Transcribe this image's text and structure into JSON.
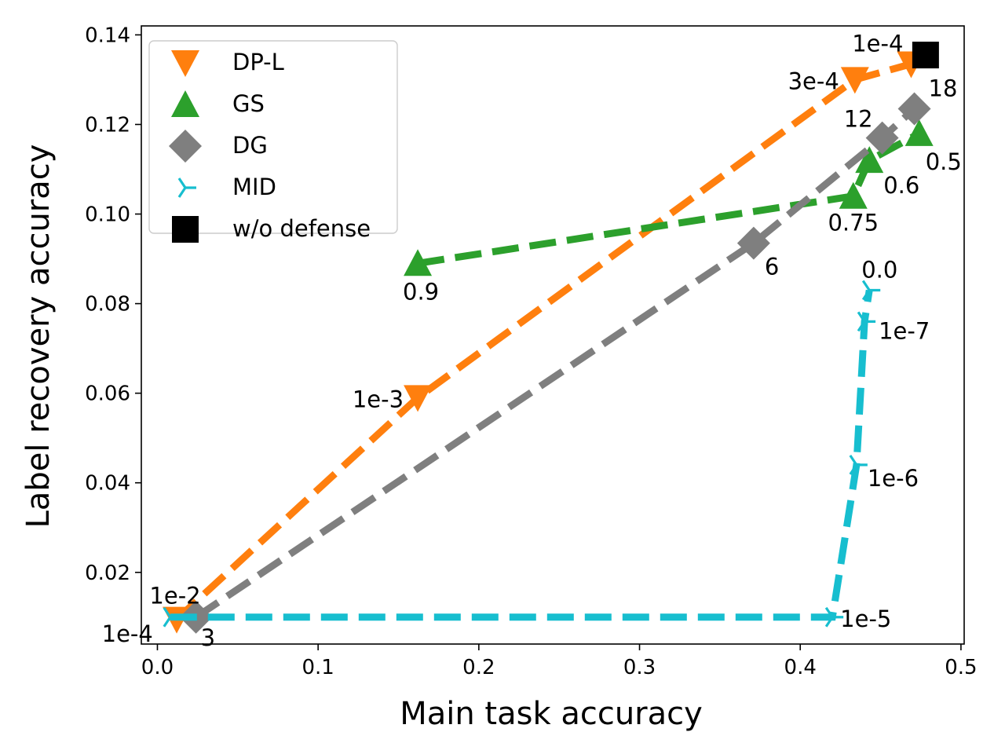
{
  "chart_data": {
    "type": "line",
    "title": "",
    "xlabel": "Main task accuracy",
    "ylabel": "Label recovery accuracy",
    "xlim": [
      -0.01,
      0.502
    ],
    "ylim": [
      0.004,
      0.142
    ],
    "xticks": [
      0.0,
      0.1,
      0.2,
      0.3,
      0.4,
      0.5
    ],
    "xtick_labels": [
      "0.0",
      "0.1",
      "0.2",
      "0.3",
      "0.4",
      "0.5"
    ],
    "yticks": [
      0.02,
      0.04,
      0.06,
      0.08,
      0.1,
      0.12,
      0.14
    ],
    "ytick_labels": [
      "0.02",
      "0.04",
      "0.06",
      "0.08",
      "0.10",
      "0.12",
      "0.14"
    ],
    "grid": false,
    "legend": "upper-left",
    "series": [
      {
        "name": "DP-L",
        "color": "#ff7f0e",
        "marker": "triangle-down",
        "points": [
          {
            "x": 0.012,
            "y": 0.0095,
            "label": "1e-2"
          },
          {
            "x": 0.162,
            "y": 0.059,
            "label": "1e-3"
          },
          {
            "x": 0.434,
            "y": 0.13,
            "label": "3e-4"
          },
          {
            "x": 0.469,
            "y": 0.1335,
            "label": "1e-4"
          }
        ]
      },
      {
        "name": "GS",
        "color": "#2ca02c",
        "marker": "triangle-up",
        "points": [
          {
            "x": 0.162,
            "y": 0.089,
            "label": "0.9"
          },
          {
            "x": 0.433,
            "y": 0.104,
            "label": "0.75"
          },
          {
            "x": 0.443,
            "y": 0.112,
            "label": "0.6"
          },
          {
            "x": 0.474,
            "y": 0.118,
            "label": "0.5"
          }
        ]
      },
      {
        "name": "DG",
        "color": "#7f7f7f",
        "marker": "diamond",
        "points": [
          {
            "x": 0.024,
            "y": 0.01,
            "label": "3"
          },
          {
            "x": 0.371,
            "y": 0.0935,
            "label": "6"
          },
          {
            "x": 0.451,
            "y": 0.117,
            "label": "12"
          },
          {
            "x": 0.471,
            "y": 0.1235,
            "label": "18"
          }
        ]
      },
      {
        "name": "MID",
        "color": "#17becf",
        "marker": "tri-left",
        "points": [
          {
            "x": 0.008,
            "y": 0.01,
            "label": "1e-4"
          },
          {
            "x": 0.42,
            "y": 0.01,
            "label": "1e-5"
          },
          {
            "x": 0.435,
            "y": 0.044,
            "label": "1e-6"
          },
          {
            "x": 0.44,
            "y": 0.076,
            "label": "1e-7"
          },
          {
            "x": 0.443,
            "y": 0.083,
            "label": "0.0"
          }
        ]
      },
      {
        "name": "w/o defense",
        "color": "#000000",
        "marker": "square",
        "points": [
          {
            "x": 0.478,
            "y": 0.1355
          }
        ]
      }
    ]
  }
}
